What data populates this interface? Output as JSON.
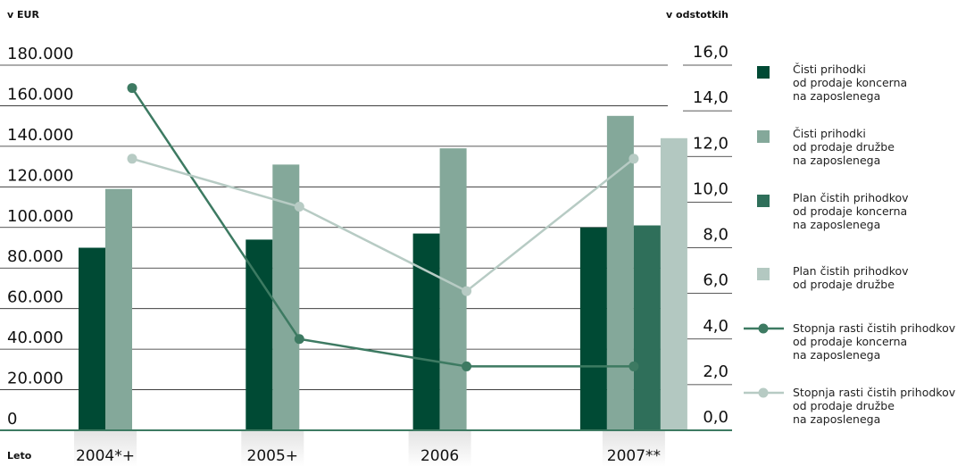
{
  "chart_data": {
    "type": "bar",
    "ylabel": "v EUR",
    "y2label": "v odstotkih",
    "xlabel": "Leto",
    "categories": [
      "2004*+",
      "2005+",
      "2006",
      "2007**"
    ],
    "ylim": [
      0,
      180000
    ],
    "yticks": [
      {
        "value": 0,
        "label": "0"
      },
      {
        "value": 20000,
        "label": "20.000"
      },
      {
        "value": 40000,
        "label": "40.000"
      },
      {
        "value": 60000,
        "label": "60.000"
      },
      {
        "value": 80000,
        "label": "80.000"
      },
      {
        "value": 100000,
        "label": "100.000"
      },
      {
        "value": 120000,
        "label": "120.000"
      },
      {
        "value": 140000,
        "label": "140.000"
      },
      {
        "value": 160000,
        "label": "160.000"
      },
      {
        "value": 180000,
        "label": "180.000"
      }
    ],
    "y2lim": [
      0,
      16
    ],
    "y2ticks": [
      {
        "value": 0,
        "label": "0,0"
      },
      {
        "value": 2,
        "label": "2,0"
      },
      {
        "value": 4,
        "label": "4,0"
      },
      {
        "value": 6,
        "label": "6,0"
      },
      {
        "value": 8,
        "label": "8,0"
      },
      {
        "value": 10,
        "label": "10,0"
      },
      {
        "value": 12,
        "label": "12,0"
      },
      {
        "value": 14,
        "label": "14,0"
      },
      {
        "value": 16,
        "label": "16,0"
      }
    ],
    "series": [
      {
        "name": "Čisti prihodki\nod prodaje koncerna\nna zaposlenega",
        "color": "#004a34",
        "values": [
          90000,
          94000,
          97000,
          100000
        ]
      },
      {
        "name": "Čisti prihodki\nod prodaje družbe\nna zaposlenega",
        "color": "#84a89a",
        "values": [
          119000,
          131000,
          139000,
          155000
        ]
      },
      {
        "name": "Plan čistih prihodkov\nod prodaje koncerna\nna zaposlenega",
        "color": "#2f6f5a",
        "values": [
          null,
          null,
          null,
          101000
        ]
      },
      {
        "name": "Plan čistih prihodkov\nod prodaje družbe",
        "color": "#b3c8c1",
        "values": [
          null,
          null,
          null,
          144000
        ]
      },
      {
        "name": "Stopnja rasti čistih prihodkov\nod prodaje koncerna\nna zaposlenega",
        "color": "#3d7a62",
        "axis": "y2",
        "values": [
          15.0,
          4.0,
          2.8,
          2.8
        ]
      },
      {
        "name": "Stopnja rasti čistih prihodkov\nod prodaje družbe\nna zaposlenega",
        "color": "#b7cbc4",
        "axis": "y2",
        "values": [
          11.9,
          9.8,
          6.1,
          11.9
        ]
      }
    ]
  }
}
